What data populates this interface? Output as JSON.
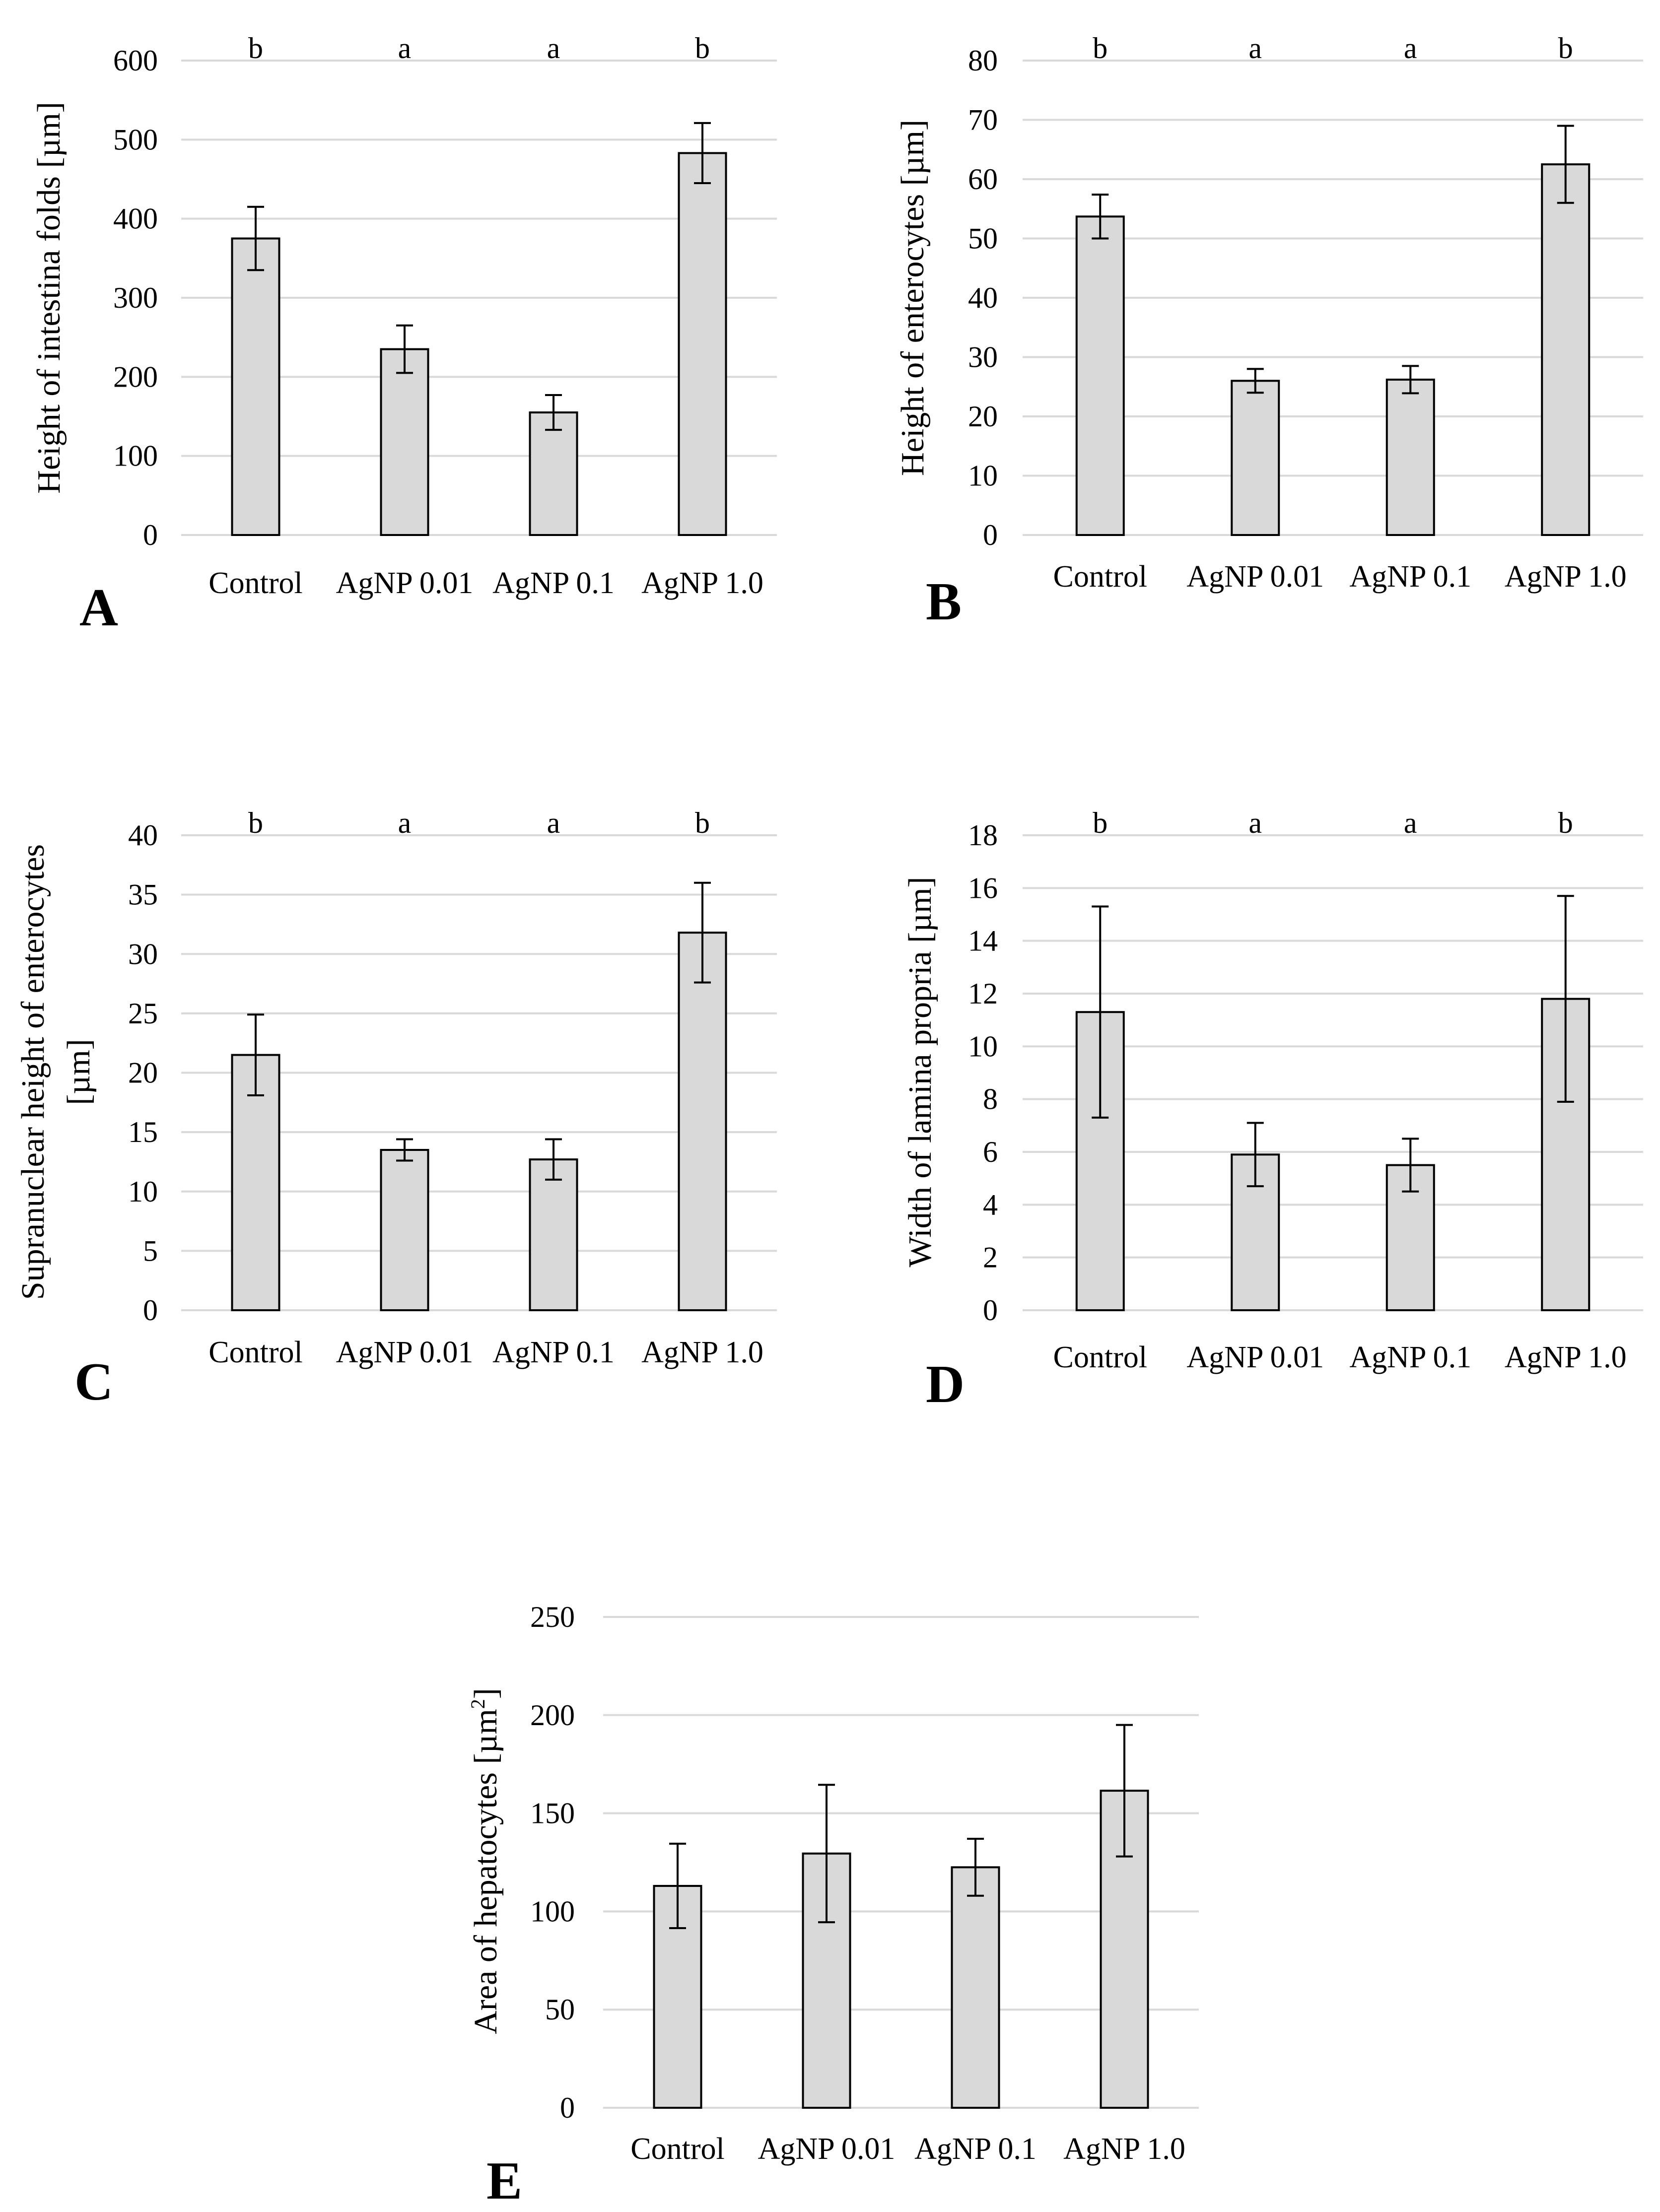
{
  "chart_data": [
    {
      "panel": "A",
      "type": "bar",
      "categories": [
        "Control",
        "AgNP 0.01",
        "AgNP 0.1",
        "AgNP 1.0"
      ],
      "values": [
        375,
        235,
        155,
        483
      ],
      "errors": [
        40,
        30,
        22,
        38
      ],
      "significance": [
        "b",
        "a",
        "a",
        "b"
      ],
      "ylabel": "Height of intestina folds [µm]",
      "ylim": [
        0,
        600
      ],
      "yticks": [
        0,
        100,
        200,
        300,
        400,
        500,
        600
      ]
    },
    {
      "panel": "B",
      "type": "bar",
      "categories": [
        "Control",
        "AgNP 0.01",
        "AgNP 0.1",
        "AgNP 1.0"
      ],
      "values": [
        53.7,
        26,
        26.2,
        62.5
      ],
      "errors": [
        3.7,
        2,
        2.3,
        6.5
      ],
      "significance": [
        "b",
        "a",
        "a",
        "b"
      ],
      "ylabel": "Height of enterocytes [µm]",
      "ylim": [
        0,
        80
      ],
      "yticks": [
        0,
        10,
        20,
        30,
        40,
        50,
        60,
        70,
        80
      ]
    },
    {
      "panel": "C",
      "type": "bar",
      "categories": [
        "Control",
        "AgNP 0.01",
        "AgNP 0.1",
        "AgNP 1.0"
      ],
      "values": [
        21.5,
        13.5,
        12.7,
        31.8
      ],
      "errors": [
        3.4,
        0.9,
        1.7,
        4.2
      ],
      "significance": [
        "b",
        "a",
        "a",
        "b"
      ],
      "ylabel": "Supranuclear height of enterocytes",
      "ylabel2": "[µm]",
      "ylim": [
        0,
        40
      ],
      "yticks": [
        0,
        5,
        10,
        15,
        20,
        25,
        30,
        35,
        40
      ]
    },
    {
      "panel": "D",
      "type": "bar",
      "categories": [
        "Control",
        "AgNP 0.01",
        "AgNP 0.1",
        "AgNP 1.0"
      ],
      "values": [
        11.3,
        5.9,
        5.5,
        11.8
      ],
      "errors": [
        4,
        1.2,
        1,
        3.9
      ],
      "significance": [
        "b",
        "a",
        "a",
        "b"
      ],
      "ylabel": "Width of lamina propria [µm]",
      "ylim": [
        0,
        18
      ],
      "yticks": [
        0,
        2,
        4,
        6,
        8,
        10,
        12,
        14,
        16,
        18
      ]
    },
    {
      "panel": "E",
      "type": "bar",
      "categories": [
        "Control",
        "AgNP 0.01",
        "AgNP 0.1",
        "AgNP 1.0"
      ],
      "values": [
        113,
        129.5,
        122.5,
        161.5
      ],
      "errors": [
        21.5,
        35,
        14.5,
        33.5
      ],
      "significance": [],
      "ylabel": "Area of hepatocytes [µm",
      "ylabel_sup": "2",
      "ylabel_end": "]",
      "ylim": [
        0,
        250
      ],
      "yticks": [
        0,
        50,
        100,
        150,
        200,
        250
      ]
    }
  ],
  "colors": {
    "bar_fill": "#d9d9d9",
    "bar_stroke": "#000000",
    "grid": "#d9d9d9"
  }
}
